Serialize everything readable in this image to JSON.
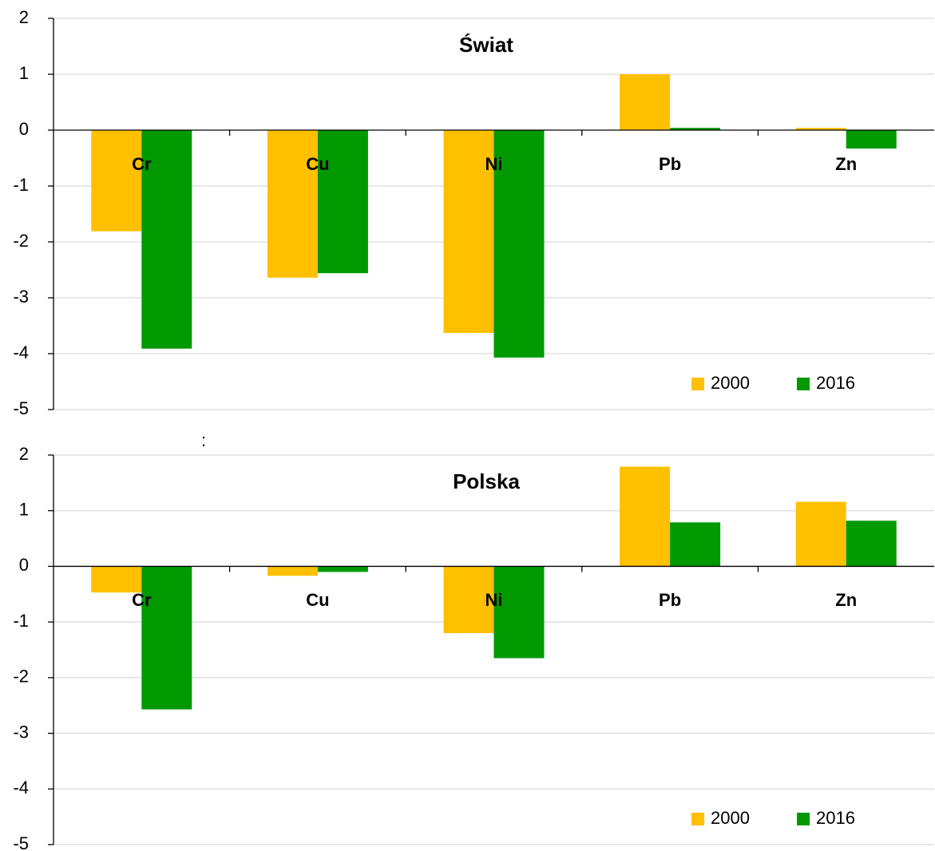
{
  "chart_data": [
    {
      "type": "bar",
      "title": "Świat",
      "annotation": ":",
      "categories": [
        "Cr",
        "Cu",
        "Ni",
        "Pb",
        "Zn"
      ],
      "series": [
        {
          "name": "2000",
          "color": "#ffc000",
          "values": [
            -1.81,
            -2.64,
            -3.63,
            1.0,
            0.04
          ]
        },
        {
          "name": "2016",
          "color": "#009900",
          "values": [
            -3.91,
            -2.56,
            -4.07,
            0.04,
            -0.33
          ]
        }
      ],
      "ylim": [
        -5,
        2
      ],
      "yticks": [
        -5,
        -4,
        -3,
        -2,
        -1,
        0,
        1,
        2
      ],
      "grid": true,
      "legend": "bottom-right"
    },
    {
      "type": "bar",
      "title": "Polska",
      "categories": [
        "Cr",
        "Cu",
        "Ni",
        "Pb",
        "Zn"
      ],
      "series": [
        {
          "name": "2000",
          "color": "#ffc000",
          "values": [
            -0.47,
            -0.17,
            -1.2,
            1.79,
            1.16
          ]
        },
        {
          "name": "2016",
          "color": "#009900",
          "values": [
            -2.57,
            -0.1,
            -1.65,
            0.79,
            0.82
          ]
        }
      ],
      "ylim": [
        -5,
        2
      ],
      "yticks": [
        -5,
        -4,
        -3,
        -2,
        -1,
        0,
        1,
        2
      ],
      "grid": true,
      "legend": "bottom-right"
    }
  ]
}
